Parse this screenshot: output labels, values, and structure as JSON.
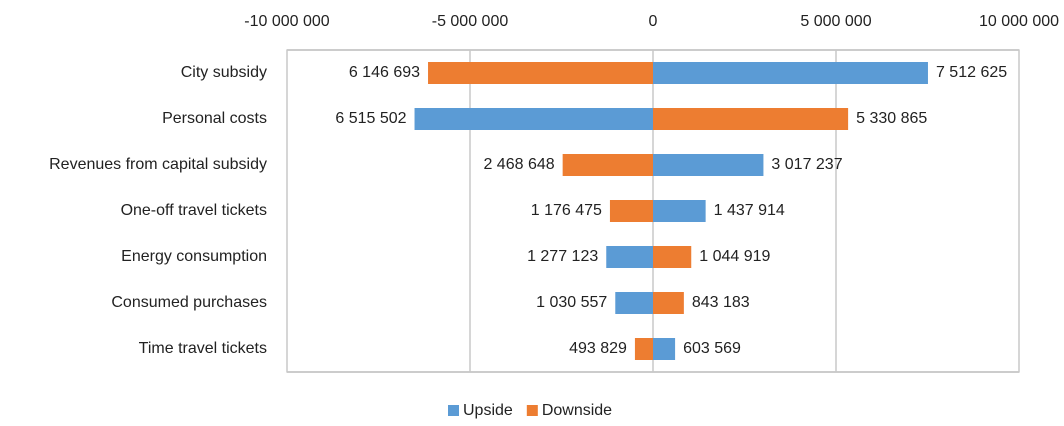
{
  "chart_data": {
    "type": "tornado",
    "categories": [
      "City subsidy",
      "Personal costs",
      "Revenues from capital subsidy",
      "One-off travel tickets",
      "Energy consumption",
      "Consumed purchases",
      "Time travel tickets"
    ],
    "series": [
      {
        "name": "Upside",
        "color": "#5b9bd5",
        "values": [
          7512625,
          -6515502,
          3017237,
          1437914,
          -1277123,
          -1030557,
          603569
        ],
        "value_labels": [
          "7 512 625",
          "6 515 502",
          "3 017 237",
          "1 437 914",
          "1 277 123",
          "1 030 557",
          "603 569"
        ]
      },
      {
        "name": "Downside",
        "color": "#ed7d31",
        "values": [
          -6146693,
          5330865,
          -2468648,
          -1176475,
          1044919,
          843183,
          -493829
        ],
        "value_labels": [
          "6 146 693",
          "5 330 865",
          "2 468 648",
          "1 176 475",
          "1 044 919",
          "843 183",
          "493 829"
        ]
      }
    ],
    "xlim": [
      -10000000,
      10000000
    ],
    "xticks": [
      {
        "value": -10000000,
        "label": "-10 000 000"
      },
      {
        "value": -5000000,
        "label": "-5 000 000"
      },
      0,
      {
        "value": 5000000,
        "label": "5 000 000"
      },
      {
        "value": 10000000,
        "label": "10 000 000"
      }
    ],
    "grid": true
  }
}
